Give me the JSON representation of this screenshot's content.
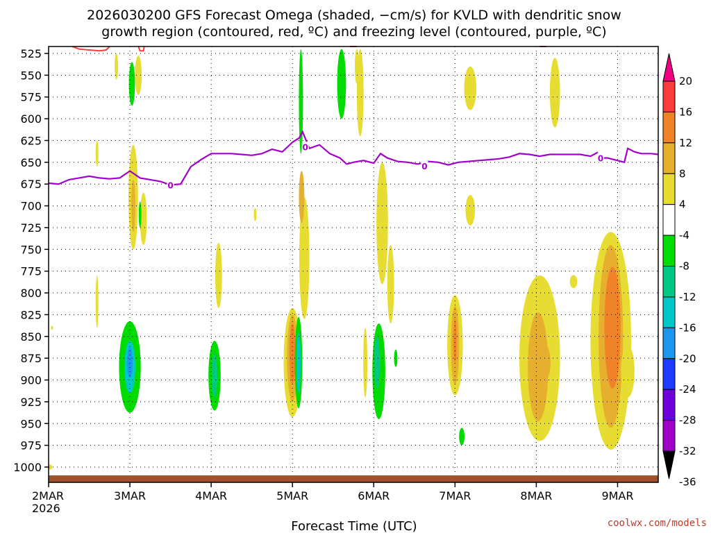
{
  "title_lines": [
    "2026030200 GFS Forecast Omega (shaded, −cm/s) for KVLD with dendritic snow",
    "growth region (contoured, red, ºC) and freezing level (contoured, purple, ºC)"
  ],
  "xlabel": "Forecast Time (UTC)",
  "credit": "coolwx.com/models",
  "chart_data": {
    "type": "heatmap",
    "x_unit": "forecast hour from 2026-03-02 00 UTC",
    "x_range": [
      0,
      180
    ],
    "x_ticks": [
      {
        "hour": 0,
        "label": "2MAR",
        "sublabel": "2026"
      },
      {
        "hour": 24,
        "label": "3MAR"
      },
      {
        "hour": 48,
        "label": "4MAR"
      },
      {
        "hour": 72,
        "label": "5MAR"
      },
      {
        "hour": 96,
        "label": "6MAR"
      },
      {
        "hour": 120,
        "label": "7MAR"
      },
      {
        "hour": 144,
        "label": "8MAR"
      },
      {
        "hour": 168,
        "label": "9MAR"
      }
    ],
    "y_unit": "hPa",
    "y_range": [
      1000,
      515
    ],
    "y_ticks": [
      525,
      550,
      575,
      600,
      625,
      650,
      675,
      700,
      725,
      750,
      775,
      800,
      825,
      850,
      875,
      900,
      925,
      950,
      975,
      1000
    ],
    "grid": "dotted",
    "colorbar": {
      "labels": [
        "20",
        "16",
        "12",
        "8",
        "4",
        "-4",
        "-8",
        "-12",
        "-16",
        "-20",
        "-24",
        "-28",
        "-32",
        "-36"
      ],
      "bins": [
        {
          "color": "#f00082",
          "label": "20"
        },
        {
          "color": "#fa3c3c",
          "label": "16"
        },
        {
          "color": "#f08228",
          "label": "12"
        },
        {
          "color": "#e6af2d",
          "label": "8"
        },
        {
          "color": "#e6dc32",
          "label": "4"
        },
        {
          "color": "#ffffff",
          "label": "-4"
        },
        {
          "color": "#00dc00",
          "label": "-8"
        },
        {
          "color": "#00c882",
          "label": "-12"
        },
        {
          "color": "#00c8c8",
          "label": "-16"
        },
        {
          "color": "#1e96f0",
          "label": "-20"
        },
        {
          "color": "#1e3cff",
          "label": "-24"
        },
        {
          "color": "#6e00dc",
          "label": "-28"
        },
        {
          "color": "#a000c8",
          "label": "-32"
        },
        {
          "color": "#a0a0a0",
          "label": "-36"
        }
      ]
    },
    "omega_cells": [
      {
        "x": 24.0,
        "p": 885,
        "w": 3.2,
        "h": 105,
        "color": "#00dc00"
      },
      {
        "x": 24.0,
        "p": 885,
        "w": 1.6,
        "h": 60,
        "color": "#00c8c8"
      },
      {
        "x": 24.0,
        "p": 880,
        "w": 0.8,
        "h": 35,
        "color": "#1e96f0"
      },
      {
        "x": 0.5,
        "p": 1000,
        "w": 0.6,
        "h": 6,
        "color": "#e6dc32"
      },
      {
        "x": 1.0,
        "p": 840,
        "w": 0.0,
        "h": 0,
        "color": "#e6dc32"
      },
      {
        "x": 25.0,
        "p": 690,
        "w": 1.4,
        "h": 120,
        "color": "#e6dc32"
      },
      {
        "x": 25.0,
        "p": 700,
        "w": 0.6,
        "h": 60,
        "color": "#e6af2d"
      },
      {
        "x": 24.6,
        "p": 560,
        "w": 0.9,
        "h": 50,
        "color": "#00dc00"
      },
      {
        "x": 28.0,
        "p": 715,
        "w": 1.0,
        "h": 60,
        "color": "#e6dc32"
      },
      {
        "x": 26.5,
        "p": 550,
        "w": 1.0,
        "h": 45,
        "color": "#e6dc32"
      },
      {
        "x": 20.0,
        "p": 540,
        "w": 0.5,
        "h": 30,
        "color": "#e6dc32"
      },
      {
        "x": 14.3,
        "p": 810,
        "w": 0.4,
        "h": 60,
        "color": "#e6dc32"
      },
      {
        "x": 14.3,
        "p": 640,
        "w": 0.4,
        "h": 30,
        "color": "#e6dc32"
      },
      {
        "x": 27.0,
        "p": 710,
        "w": 0.4,
        "h": 30,
        "color": "#00dc00"
      },
      {
        "x": 49.0,
        "p": 895,
        "w": 1.8,
        "h": 80,
        "color": "#00dc00"
      },
      {
        "x": 49.0,
        "p": 895,
        "w": 0.8,
        "h": 50,
        "color": "#00c882"
      },
      {
        "x": 50.2,
        "p": 780,
        "w": 1.0,
        "h": 75,
        "color": "#e6dc32"
      },
      {
        "x": 61.0,
        "p": 710,
        "w": 0.4,
        "h": 15,
        "color": "#e6dc32"
      },
      {
        "x": 72.0,
        "p": 880,
        "w": 2.6,
        "h": 125,
        "color": "#e6dc32"
      },
      {
        "x": 72.0,
        "p": 875,
        "w": 1.6,
        "h": 100,
        "color": "#e6af2d"
      },
      {
        "x": 72.0,
        "p": 870,
        "w": 0.9,
        "h": 70,
        "color": "#f08228"
      },
      {
        "x": 73.8,
        "p": 880,
        "w": 1.1,
        "h": 105,
        "color": "#00dc00"
      },
      {
        "x": 73.8,
        "p": 880,
        "w": 0.6,
        "h": 70,
        "color": "#00c8c8"
      },
      {
        "x": 74.5,
        "p": 580,
        "w": 0.6,
        "h": 120,
        "color": "#00dc00"
      },
      {
        "x": 75.5,
        "p": 760,
        "w": 1.5,
        "h": 140,
        "color": "#e6dc32"
      },
      {
        "x": 74.7,
        "p": 690,
        "w": 0.8,
        "h": 60,
        "color": "#e6af2d"
      },
      {
        "x": 86.5,
        "p": 560,
        "w": 1.3,
        "h": 80,
        "color": "#00dc00"
      },
      {
        "x": 92.0,
        "p": 570,
        "w": 1.0,
        "h": 100,
        "color": "#e6dc32"
      },
      {
        "x": 91.0,
        "p": 540,
        "w": 0.6,
        "h": 40,
        "color": "#e6dc32"
      },
      {
        "x": 97.5,
        "p": 890,
        "w": 1.9,
        "h": 110,
        "color": "#00dc00"
      },
      {
        "x": 97.0,
        "p": 880,
        "w": 0.8,
        "h": 60,
        "color": "#00c882"
      },
      {
        "x": 98.5,
        "p": 720,
        "w": 1.7,
        "h": 140,
        "color": "#e6dc32"
      },
      {
        "x": 101.0,
        "p": 790,
        "w": 1.0,
        "h": 90,
        "color": "#e6dc32"
      },
      {
        "x": 93.5,
        "p": 880,
        "w": 0.6,
        "h": 80,
        "color": "#e6dc32"
      },
      {
        "x": 102.5,
        "p": 875,
        "w": 0.5,
        "h": 20,
        "color": "#00dc00"
      },
      {
        "x": 120.0,
        "p": 860,
        "w": 2.3,
        "h": 115,
        "color": "#e6dc32"
      },
      {
        "x": 120.0,
        "p": 860,
        "w": 1.2,
        "h": 90,
        "color": "#e6af2d"
      },
      {
        "x": 120.0,
        "p": 855,
        "w": 0.5,
        "h": 50,
        "color": "#f08228"
      },
      {
        "x": 122.0,
        "p": 965,
        "w": 0.8,
        "h": 20,
        "color": "#00dc00"
      },
      {
        "x": 124.5,
        "p": 565,
        "w": 1.8,
        "h": 50,
        "color": "#e6dc32"
      },
      {
        "x": 124.5,
        "p": 705,
        "w": 1.4,
        "h": 35,
        "color": "#e6dc32"
      },
      {
        "x": 145.0,
        "p": 875,
        "w": 6.0,
        "h": 190,
        "color": "#e6dc32"
      },
      {
        "x": 144.5,
        "p": 885,
        "w": 3.0,
        "h": 125,
        "color": "#e6af2d"
      },
      {
        "x": 146.0,
        "p": 880,
        "w": 2.2,
        "h": 45,
        "color": "#e6af2d"
      },
      {
        "x": 149.5,
        "p": 570,
        "w": 1.5,
        "h": 80,
        "color": "#e6dc32"
      },
      {
        "x": 155.0,
        "p": 787,
        "w": 1.1,
        "h": 15,
        "color": "#e6dc32"
      },
      {
        "x": 166.0,
        "p": 855,
        "w": 6.0,
        "h": 250,
        "color": "#e6dc32"
      },
      {
        "x": 166.0,
        "p": 850,
        "w": 3.6,
        "h": 210,
        "color": "#e6af2d"
      },
      {
        "x": 166.5,
        "p": 840,
        "w": 2.4,
        "h": 140,
        "color": "#f08228"
      },
      {
        "x": 171.0,
        "p": 890,
        "w": 2.0,
        "h": 60,
        "color": "#e6dc32"
      }
    ],
    "series": [
      {
        "name": "0",
        "color": "#a000c8",
        "x": [
          0,
          3,
          6,
          9,
          12,
          15,
          18,
          21,
          24,
          27,
          30,
          33,
          36,
          39,
          42,
          45,
          48,
          51,
          54,
          57,
          60,
          63,
          66,
          69,
          72,
          74,
          75,
          77,
          80,
          83,
          86,
          88,
          90,
          93,
          96,
          98,
          100,
          103,
          106,
          109,
          112,
          115,
          118,
          121,
          124,
          127,
          130,
          133,
          136,
          139,
          142,
          145,
          148,
          151,
          154,
          157,
          160,
          162,
          163,
          165,
          168,
          170,
          171,
          173,
          175,
          178,
          180
        ],
        "p": [
          674,
          675,
          670,
          668,
          666,
          668,
          669,
          668,
          660,
          668,
          670,
          672,
          676,
          675,
          655,
          647,
          640,
          640,
          640,
          641,
          642,
          640,
          635,
          638,
          627,
          622,
          615,
          634,
          630,
          640,
          645,
          652,
          650,
          648,
          651,
          640,
          645,
          649,
          650,
          652,
          649,
          650,
          653,
          650,
          649,
          648,
          647,
          646,
          644,
          640,
          641,
          643,
          641,
          641,
          641,
          641,
          643,
          639,
          645,
          645,
          648,
          650,
          634,
          638,
          640,
          640,
          641
        ],
        "labels": [
          {
            "x": 36,
            "p": 676
          },
          {
            "x": 75.8,
            "p": 632
          },
          {
            "x": 111,
            "p": 654
          },
          {
            "x": 163,
            "p": 645
          }
        ]
      },
      {
        "name": "dendritic",
        "color": "#fa3c3c",
        "segments": [
          {
            "x": [
              7,
              9,
              12,
              15,
              17,
              18
            ],
            "p": [
              515,
              520,
              521,
              522,
              521,
              515
            ]
          },
          {
            "x": [
              26.5,
              27,
              28,
              28.2
            ],
            "p": [
              515,
              522,
              522,
              515
            ]
          },
          {
            "x": [
              89,
              91
            ],
            "p": [
              517,
              517
            ]
          },
          {
            "x": [
              145,
              147
            ],
            "p": [
              517,
              517
            ]
          }
        ]
      }
    ],
    "terrain_color": "#a0522d"
  }
}
